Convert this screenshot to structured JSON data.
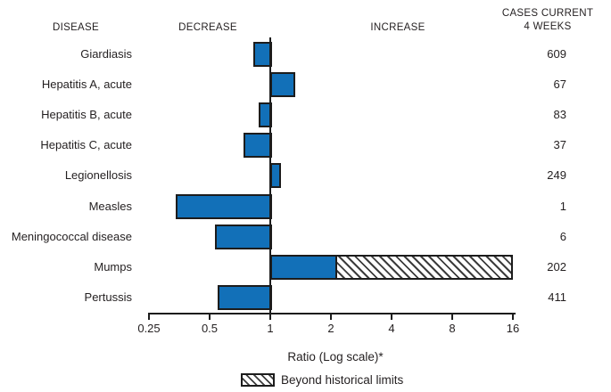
{
  "header": {
    "disease": "DISEASE",
    "decrease": "DECREASE",
    "increase": "INCREASE",
    "cases_line1": "CASES CURRENT",
    "cases_line2": "4 WEEKS"
  },
  "chart_data": {
    "type": "bar",
    "orientation": "horizontal",
    "scale": "log2",
    "baseline": 1,
    "axis": {
      "label": "Ratio (Log scale)*",
      "ticks": [
        "0.25",
        "0.5",
        "1",
        "2",
        "4",
        "8",
        "16"
      ],
      "range": [
        0.25,
        16
      ]
    },
    "legend": {
      "label": "Beyond historical limits",
      "style": "hatched"
    },
    "colors": {
      "bar_fill": "#1270b8",
      "bar_border": "#1c1c1c",
      "text": "#231f20",
      "background": "#ffffff"
    },
    "rows": [
      {
        "disease": "Giardiasis",
        "ratio": 0.82,
        "cases": "609",
        "beyond_historical": false
      },
      {
        "disease": "Hepatitis A, acute",
        "ratio": 1.33,
        "cases": "67",
        "beyond_historical": false
      },
      {
        "disease": "Hepatitis B, acute",
        "ratio": 0.88,
        "cases": "83",
        "beyond_historical": false
      },
      {
        "disease": "Hepatitis C, acute",
        "ratio": 0.74,
        "cases": "37",
        "beyond_historical": false
      },
      {
        "disease": "Legionellosis",
        "ratio": 1.13,
        "cases": "249",
        "beyond_historical": false
      },
      {
        "disease": "Measles",
        "ratio": 0.34,
        "cases": "1",
        "beyond_historical": false
      },
      {
        "disease": "Meningococcal disease",
        "ratio": 0.53,
        "cases": "6",
        "beyond_historical": false
      },
      {
        "disease": "Mumps",
        "ratio": 2.15,
        "cases": "202",
        "beyond_historical": true,
        "beyond_extent": 16
      },
      {
        "disease": "Pertussis",
        "ratio": 0.55,
        "cases": "411",
        "beyond_historical": false
      }
    ]
  }
}
